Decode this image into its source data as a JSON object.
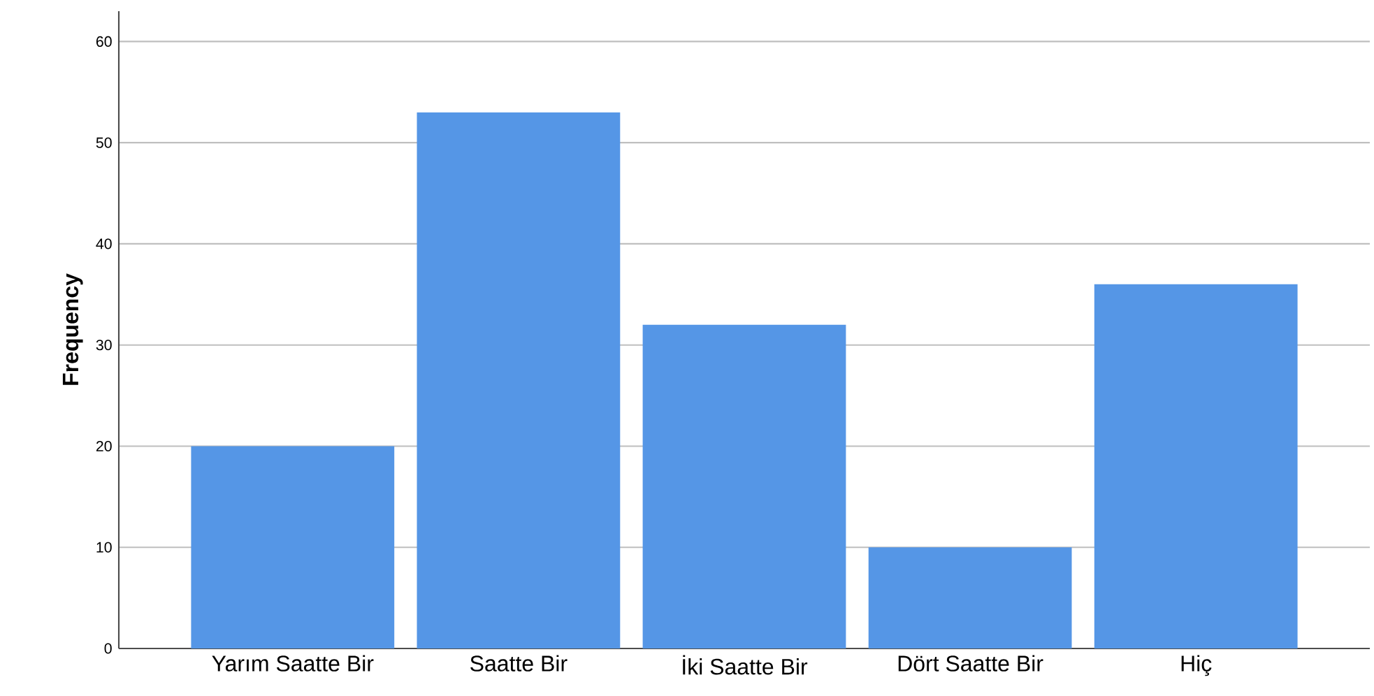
{
  "chart_data": {
    "type": "bar",
    "ylabel": "Frequency",
    "categories": [
      "Yarım Saatte Bir",
      "Saatte Bir",
      "İki Saatte Bir",
      "Dört Saatte Bir",
      "Hiç"
    ],
    "values": [
      20,
      53,
      32,
      10,
      36
    ],
    "color": "#5596e6",
    "ylim": [
      0,
      63
    ],
    "yticks": [
      0,
      10,
      20,
      30,
      40,
      50,
      60
    ],
    "grid": "y"
  }
}
